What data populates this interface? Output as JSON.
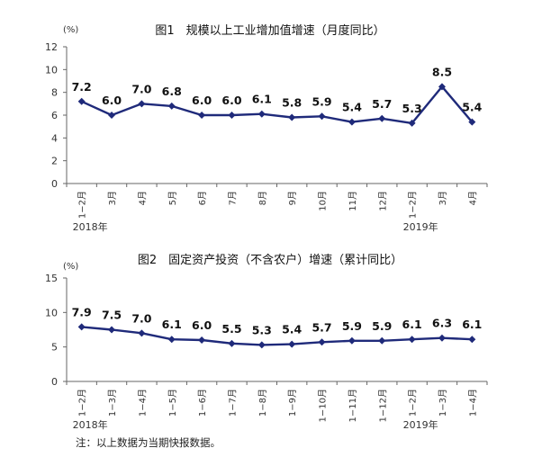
{
  "chart_data": [
    {
      "type": "line",
      "title": "图1　规模以上工业增加值增速（月度同比）",
      "unit": "(%)",
      "ylim": [
        0,
        12
      ],
      "yticks": [
        0,
        2,
        4,
        6,
        8,
        10,
        12
      ],
      "categories": [
        "1−2月",
        "3月",
        "4月",
        "5月",
        "6月",
        "7月",
        "8月",
        "9月",
        "10月",
        "11月",
        "12月",
        "1−2月",
        "3月",
        "4月"
      ],
      "year_labels": [
        {
          "label": "2018年",
          "index": 0
        },
        {
          "label": "2019年",
          "index": 11
        }
      ],
      "values": [
        7.2,
        6.0,
        7.0,
        6.8,
        6.0,
        6.0,
        6.1,
        5.8,
        5.9,
        5.4,
        5.7,
        5.3,
        8.5,
        5.4
      ],
      "data_labels": [
        "7.2",
        "6.0",
        "7.0",
        "6.8",
        "6.0",
        "6.0",
        "6.1",
        "5.8",
        "5.9",
        "5.4",
        "5.7",
        "5.3",
        "8.5",
        "5.4"
      ],
      "line_color": "#1f2a7a"
    },
    {
      "type": "line",
      "title": "图2　固定资产投资（不含农户）增速（累计同比）",
      "unit": "(%)",
      "ylim": [
        0,
        15
      ],
      "yticks": [
        0,
        5,
        10,
        15
      ],
      "categories": [
        "1−2月",
        "1−3月",
        "1−4月",
        "1−5月",
        "1−6月",
        "1−7月",
        "1−8月",
        "1−9月",
        "1−10月",
        "1−11月",
        "1−12月",
        "1−2月",
        "1−3月",
        "1−4月"
      ],
      "year_labels": [
        {
          "label": "2018年",
          "index": 0
        },
        {
          "label": "2019年",
          "index": 11
        }
      ],
      "values": [
        7.9,
        7.5,
        7.0,
        6.1,
        6.0,
        5.5,
        5.3,
        5.4,
        5.7,
        5.9,
        5.9,
        6.1,
        6.3,
        6.1
      ],
      "data_labels": [
        "7.9",
        "7.5",
        "7.0",
        "6.1",
        "6.0",
        "5.5",
        "5.3",
        "5.4",
        "5.7",
        "5.9",
        "5.9",
        "6.1",
        "6.3",
        "6.1"
      ],
      "line_color": "#1f2a7a"
    }
  ],
  "note": "注：以上数据为当期快报数据。"
}
